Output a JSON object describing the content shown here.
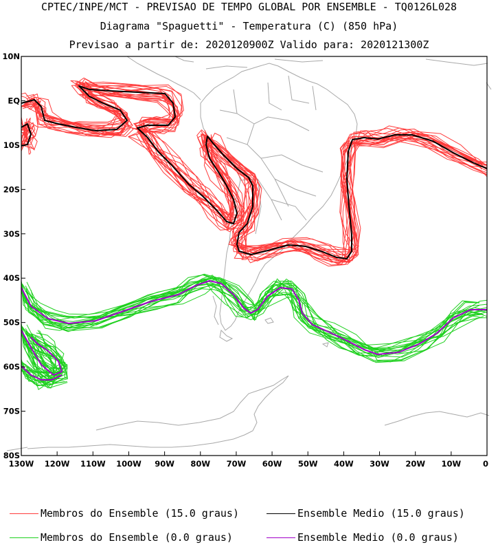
{
  "header": {
    "line1": "CPTEC/INPE/MCT - PREVISAO DE TEMPO GLOBAL POR ENSEMBLE - TQ0126L028",
    "line2": "Diagrama \"Spaguetti\" - Temperatura (C) (850 hPa)",
    "line3": "Previsao a partir de: 2020120900Z  Valido para: 2020121300Z"
  },
  "map": {
    "lat_labels": [
      "10N",
      "EQ",
      "10S",
      "20S",
      "30S",
      "40S",
      "50S",
      "60S",
      "70S",
      "80S"
    ],
    "lon_labels": [
      "130W",
      "120W",
      "110W",
      "100W",
      "90W",
      "80W",
      "70W",
      "60W",
      "50W",
      "40W",
      "30W",
      "20W",
      "10W",
      "0"
    ],
    "lat_range": [
      -80,
      10
    ],
    "lon_range": [
      -130,
      0
    ]
  },
  "legend": [
    {
      "label": "Membros do Ensemble (15.0 graus)",
      "color": "#ff3b3b"
    },
    {
      "label": "Ensemble Medio (15.0 graus)",
      "color": "#000000"
    },
    {
      "label": "Membros do Ensemble (0.0 graus)",
      "color": "#1ed01e"
    },
    {
      "label": "Ensemble Medio (0.0 graus)",
      "color": "#a000c8"
    }
  ],
  "colors": {
    "coast": "#a8a8a8",
    "warm_member": "#ff3b3b",
    "warm_mean": "#000000",
    "cold_member": "#1ed01e",
    "cold_mean": "#a000c8"
  }
}
